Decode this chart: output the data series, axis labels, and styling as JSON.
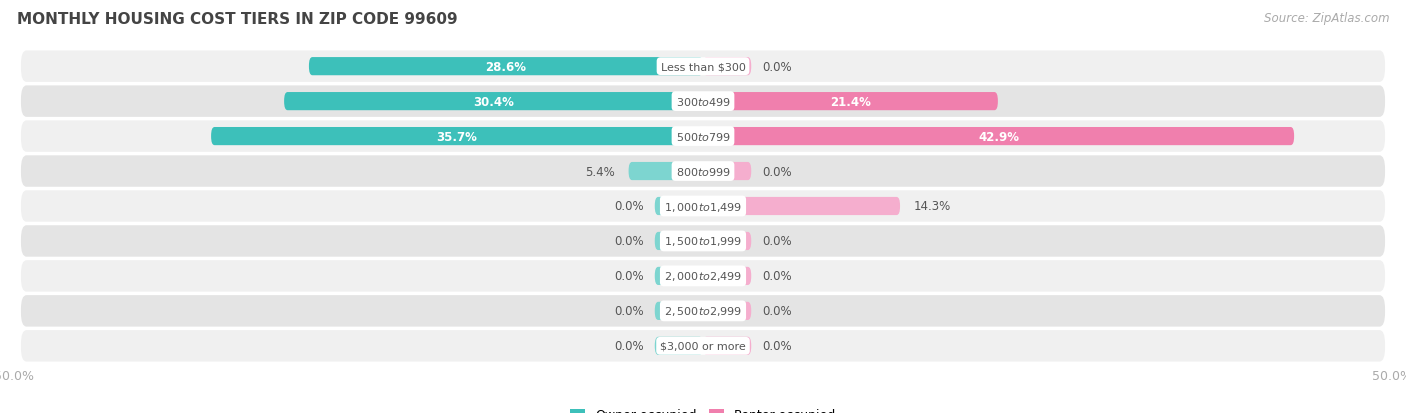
{
  "title": "MONTHLY HOUSING COST TIERS IN ZIP CODE 99609",
  "source": "Source: ZipAtlas.com",
  "categories": [
    "Less than $300",
    "$300 to $499",
    "$500 to $799",
    "$800 to $999",
    "$1,000 to $1,499",
    "$1,500 to $1,999",
    "$2,000 to $2,499",
    "$2,500 to $2,999",
    "$3,000 or more"
  ],
  "owner_values": [
    28.6,
    30.4,
    35.7,
    5.4,
    0.0,
    0.0,
    0.0,
    0.0,
    0.0
  ],
  "renter_values": [
    0.0,
    21.4,
    42.9,
    0.0,
    14.3,
    0.0,
    0.0,
    0.0,
    0.0
  ],
  "owner_color": "#3DC0BA",
  "renter_color": "#F07FAD",
  "owner_color_light": "#7DD5D0",
  "renter_color_light": "#F5AECE",
  "bg_row_even": "#F0F0F0",
  "bg_row_odd": "#E4E4E4",
  "axis_label_color": "#AAAAAA",
  "title_color": "#444444",
  "label_color_dark": "#555555",
  "label_color_white": "#FFFFFF",
  "bar_height": 0.52,
  "stub_size": 3.5,
  "xlim_left": -50,
  "xlim_right": 50,
  "figsize": [
    14.06,
    4.14
  ],
  "dpi": 100,
  "label_threshold": 15
}
